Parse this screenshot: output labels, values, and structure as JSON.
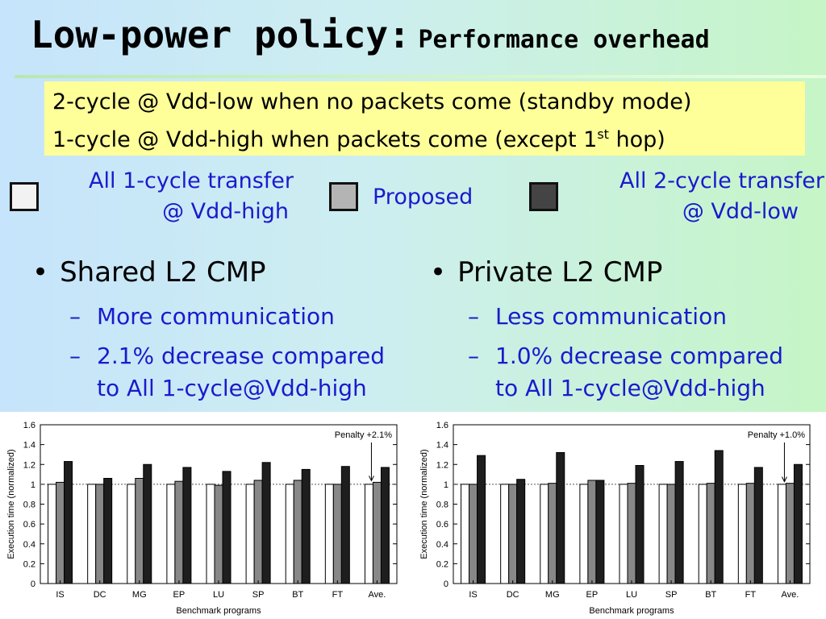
{
  "slide": {
    "title_main": "Low-power policy:",
    "title_sub": "Performance overhead",
    "note": {
      "line1": "2-cycle @ Vdd-low when no packets come (standby mode)",
      "line2_pre": "1-cycle @ Vdd-high when packets come (except 1",
      "line2_sup": "st",
      "line2_post": " hop)"
    },
    "legend": [
      {
        "line1": "All 1-cycle transfer",
        "line2": "@ Vdd-high",
        "color": "#f2f2f2"
      },
      {
        "line1": "Proposed",
        "line2": "",
        "color": "#b4b4b4"
      },
      {
        "line1": "All 2-cycle transfer",
        "line2": "@ Vdd-low",
        "color": "#444444"
      }
    ],
    "left_col": {
      "bullet": "Shared L2 CMP",
      "sub1": "More communication",
      "sub2_line1": "2.1% decrease compared",
      "sub2_line2": "to All 1-cycle@Vdd-high"
    },
    "right_col": {
      "bullet": "Private L2 CMP",
      "sub1": "Less communication",
      "sub2_line1": "1.0% decrease compared",
      "sub2_line2": "to All 1-cycle@Vdd-high"
    },
    "bullet_glyph": "•",
    "dash_glyph": "–"
  },
  "chart_data": [
    {
      "type": "bar",
      "categories": [
        "IS",
        "DC",
        "MG",
        "EP",
        "LU",
        "SP",
        "BT",
        "FT",
        "Ave."
      ],
      "series": [
        {
          "values": [
            1.0,
            1.0,
            1.0,
            1.0,
            1.0,
            1.0,
            1.0,
            1.0,
            1.0
          ],
          "color": "#ffffff"
        },
        {
          "values": [
            1.02,
            1.0,
            1.06,
            1.03,
            0.99,
            1.04,
            1.04,
            1.0,
            1.02
          ],
          "color": "#888888"
        },
        {
          "values": [
            1.23,
            1.06,
            1.2,
            1.17,
            1.13,
            1.22,
            1.15,
            1.18,
            1.17
          ],
          "color": "#1e1e1e"
        }
      ],
      "xlabel": "Benchmark programs",
      "ylabel": "Execution time (normalized)",
      "ylim": [
        0,
        1.6
      ],
      "yticks": [
        "0",
        "0.2",
        "0.4",
        "0.6",
        "0.8",
        "1",
        "1.2",
        "1.4",
        "1.6"
      ],
      "reference_line": 1,
      "annotation": "Penalty +2.1%",
      "grid": false
    },
    {
      "type": "bar",
      "categories": [
        "IS",
        "DC",
        "MG",
        "EP",
        "LU",
        "SP",
        "BT",
        "FT",
        "Ave."
      ],
      "series": [
        {
          "values": [
            1.0,
            1.0,
            1.0,
            1.0,
            1.0,
            1.0,
            1.0,
            1.0,
            1.0
          ],
          "color": "#ffffff"
        },
        {
          "values": [
            1.0,
            1.0,
            1.01,
            1.04,
            1.01,
            1.0,
            1.01,
            1.01,
            1.01
          ],
          "color": "#888888"
        },
        {
          "values": [
            1.29,
            1.05,
            1.32,
            1.04,
            1.19,
            1.23,
            1.34,
            1.17,
            1.2
          ],
          "color": "#1e1e1e"
        }
      ],
      "xlabel": "Benchmark programs",
      "ylabel": "Execution time (normalized)",
      "ylim": [
        0,
        1.6
      ],
      "yticks": [
        "0",
        "0.2",
        "0.4",
        "0.6",
        "0.8",
        "1",
        "1.2",
        "1.4",
        "1.6"
      ],
      "reference_line": 1,
      "annotation": "Penalty +1.0%",
      "grid": false
    }
  ]
}
